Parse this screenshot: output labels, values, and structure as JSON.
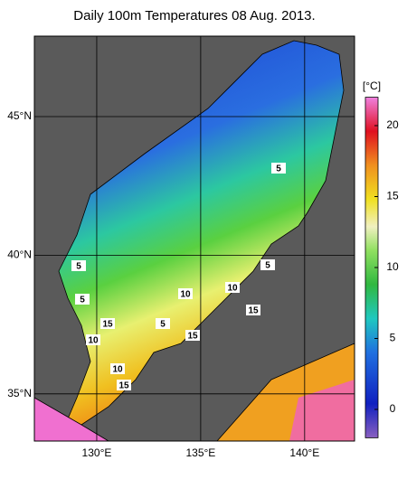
{
  "title": "Daily 100m Temperatures 08 Aug. 2013.",
  "map": {
    "lon_lim": [
      127,
      142.4
    ],
    "lat_lim": [
      33.3,
      47.9
    ],
    "lon_ticks": [
      {
        "value": 130,
        "label": "130°E"
      },
      {
        "value": 135,
        "label": "135°E"
      },
      {
        "value": 140,
        "label": "140°E"
      }
    ],
    "lat_ticks": [
      {
        "value": 45,
        "label": "45°N"
      },
      {
        "value": 40,
        "label": "40°N"
      },
      {
        "value": 35,
        "label": "35°N"
      }
    ],
    "contour_labels": [
      "5",
      "5",
      "5",
      "5",
      "5",
      "10",
      "10",
      "10",
      "10",
      "15",
      "15",
      "15",
      "15"
    ]
  },
  "colorbar": {
    "unit": "[°C]",
    "lim": [
      -2,
      22
    ],
    "ticks": [
      0,
      5,
      10,
      15,
      20
    ]
  }
}
